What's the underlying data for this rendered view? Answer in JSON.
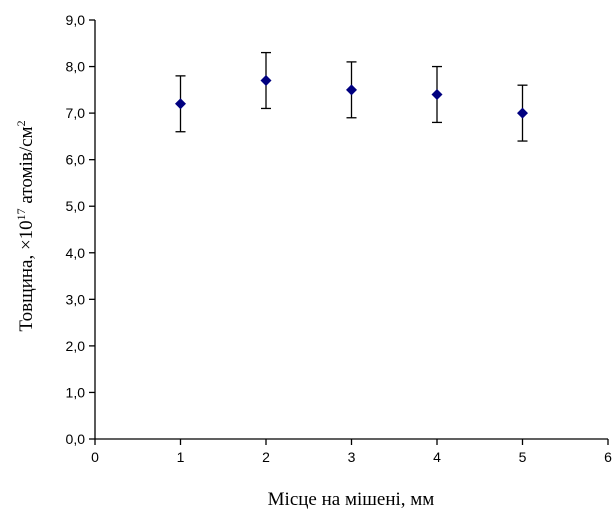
{
  "chart_data": {
    "type": "scatter",
    "title": "",
    "xlabel": "Місце на мішені, мм",
    "ylabel": {
      "prefix": "Товщина, ×10",
      "exponent": "17",
      "unit": " атомів/см",
      "unit_exponent": "2"
    },
    "xlim": [
      0,
      6
    ],
    "ylim": [
      0,
      9
    ],
    "x_ticks": [
      0,
      1,
      2,
      3,
      4,
      5,
      6
    ],
    "y_ticks": [
      0,
      1,
      2,
      3,
      4,
      5,
      6,
      7,
      8,
      9
    ],
    "x_tick_labels": [
      "0",
      "1",
      "2",
      "3",
      "4",
      "5",
      "6"
    ],
    "y_tick_labels": [
      "0,0",
      "1,0",
      "2,0",
      "3,0",
      "4,0",
      "5,0",
      "6,0",
      "7,0",
      "8,0",
      "9,0"
    ],
    "grid": false,
    "legend": "none",
    "marker": "diamond",
    "marker_color": "#000080",
    "series": [
      {
        "x": [
          1,
          2,
          3,
          4,
          5
        ],
        "y": [
          7.2,
          7.7,
          7.5,
          7.4,
          7.0
        ],
        "y_err_low": [
          6.6,
          7.1,
          6.9,
          6.8,
          6.4
        ],
        "y_err_high": [
          7.8,
          8.3,
          8.1,
          8.0,
          7.6
        ]
      }
    ]
  }
}
